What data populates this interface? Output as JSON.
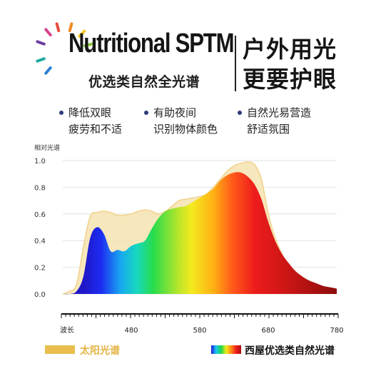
{
  "header": {
    "title_en": "Nutritional SPTM",
    "title_cn": "优选类自然全光谱",
    "headline": [
      "户外用光",
      "更要护眼"
    ]
  },
  "features": [
    {
      "lines": [
        "降低双眼",
        "疲劳和不适"
      ]
    },
    {
      "lines": [
        "有助夜间",
        "识别物体颜色"
      ]
    },
    {
      "lines": [
        "自然光易营造",
        "舒适氛围"
      ]
    }
  ],
  "colors": {
    "accent_dot": "#2c3a78",
    "sunlight": "#e9be4e",
    "sun_rays": [
      "#e94b3c",
      "#f08a24",
      "#f3c623",
      "#8cc63f",
      "#21a9a1",
      "#2a7fd1",
      "#6b3fa0",
      "#d8408f"
    ]
  },
  "chart_data": {
    "type": "area",
    "ylabel": "相对光谱",
    "xlabel": "波长",
    "x_tick_labels": [
      "480",
      "580",
      "680",
      "780"
    ],
    "y_tick_labels": [
      "1.0",
      "0.8",
      "0.6",
      "0.4",
      "0.2",
      "0.0"
    ],
    "xlim": [
      380,
      780
    ],
    "ylim": [
      0,
      1.0
    ],
    "legend_position": "bottom",
    "series": [
      {
        "name": "太阳光谱",
        "color": "#f6e3b0",
        "x": [
          380,
          390,
          400,
          410,
          420,
          430,
          440,
          450,
          460,
          470,
          480,
          490,
          500,
          510,
          520,
          530,
          540,
          550,
          560,
          570,
          580,
          590,
          600,
          610,
          620,
          630,
          640,
          650,
          660,
          670,
          680,
          690,
          700,
          710,
          720,
          730,
          740,
          750,
          760,
          770,
          780
        ],
        "values": [
          0.0,
          0.02,
          0.07,
          0.35,
          0.58,
          0.61,
          0.62,
          0.61,
          0.59,
          0.59,
          0.6,
          0.62,
          0.63,
          0.62,
          0.6,
          0.62,
          0.66,
          0.7,
          0.71,
          0.72,
          0.73,
          0.75,
          0.8,
          0.86,
          0.92,
          0.96,
          0.98,
          0.99,
          0.97,
          0.86,
          0.6,
          0.42,
          0.3,
          0.21,
          0.15,
          0.11,
          0.08,
          0.06,
          0.04,
          0.02,
          0.01
        ]
      },
      {
        "name": "西屋优选类自然光谱",
        "color": "spectrum",
        "x": [
          380,
          390,
          400,
          410,
          420,
          430,
          440,
          450,
          460,
          470,
          480,
          490,
          500,
          510,
          520,
          530,
          540,
          550,
          560,
          570,
          580,
          590,
          600,
          610,
          620,
          630,
          640,
          650,
          660,
          670,
          680,
          690,
          700,
          710,
          720,
          730,
          740,
          750,
          760,
          770,
          780
        ],
        "values": [
          0.0,
          0.0,
          0.02,
          0.13,
          0.42,
          0.5,
          0.45,
          0.32,
          0.33,
          0.32,
          0.36,
          0.38,
          0.4,
          0.49,
          0.57,
          0.62,
          0.64,
          0.65,
          0.66,
          0.69,
          0.72,
          0.75,
          0.79,
          0.85,
          0.89,
          0.91,
          0.91,
          0.88,
          0.82,
          0.71,
          0.54,
          0.4,
          0.3,
          0.23,
          0.17,
          0.13,
          0.1,
          0.08,
          0.06,
          0.05,
          0.04
        ]
      }
    ]
  }
}
